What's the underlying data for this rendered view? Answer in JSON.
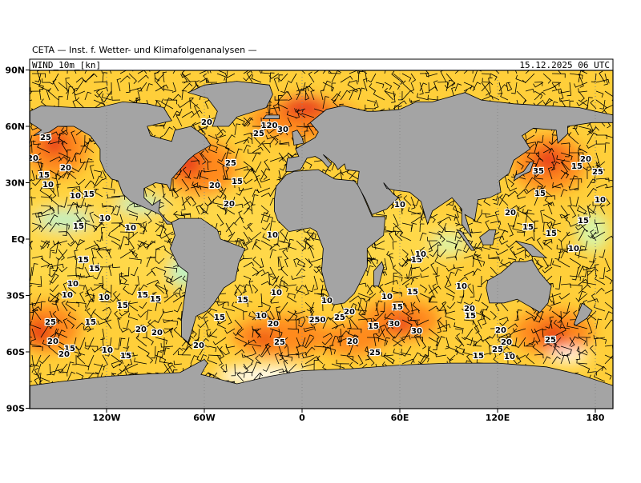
{
  "header": {
    "title": "CETA — Inst. f. Wetter- und Klimafolgenanalysen —"
  },
  "panel": {
    "field": "WIND_10m_[kn]",
    "date": "15.12.2025 06 UTC"
  },
  "axes": {
    "lat_labels": [
      "90N",
      "60N",
      "30N",
      "EQ",
      "30S",
      "60S",
      "90S"
    ],
    "lon_labels": [
      "120W",
      "60W",
      "0",
      "60E",
      "120E",
      "180"
    ]
  },
  "contour_labels": [
    "25",
    "20",
    "15",
    "10",
    "20",
    "10",
    "15",
    "10",
    "15",
    "10",
    "20",
    "25",
    "20",
    "15",
    "20",
    "120",
    "25",
    "30",
    "10",
    "10",
    "15",
    "15",
    "10",
    "10",
    "10",
    "15",
    "15",
    "15",
    "25",
    "15",
    "20",
    "15",
    "20",
    "10",
    "15",
    "20",
    "20",
    "20",
    "15",
    "15",
    "10",
    "20",
    "10",
    "10",
    "250",
    "25",
    "20",
    "15",
    "30",
    "30",
    "20",
    "25",
    "25",
    "10",
    "15",
    "15",
    "15",
    "10",
    "10",
    "20",
    "15",
    "20",
    "20",
    "25",
    "15",
    "10",
    "25",
    "35",
    "15",
    "20",
    "25",
    "15",
    "20",
    "15",
    "15",
    "10",
    "10",
    "15"
  ]
}
